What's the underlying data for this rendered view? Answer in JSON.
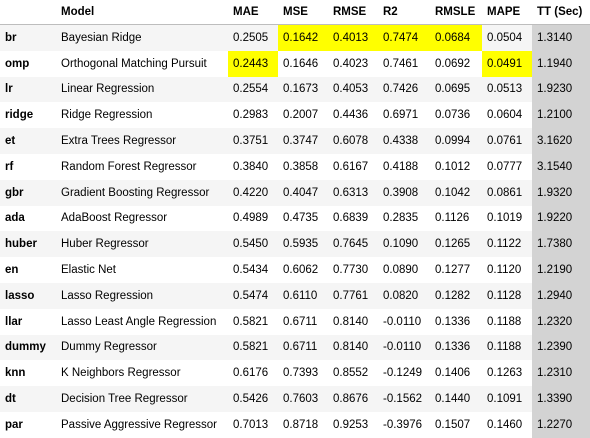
{
  "columns": [
    "",
    "Model",
    "MAE",
    "MSE",
    "RMSE",
    "R2",
    "RMSLE",
    "MAPE",
    "TT (Sec)"
  ],
  "highlight_color": "#ffff00",
  "tt_column_color": "#d3d3d3",
  "rows": [
    {
      "id": "br",
      "model": "Bayesian Ridge",
      "mae": "0.2505",
      "mse": "0.1642",
      "rmse": "0.4013",
      "r2": "0.7474",
      "rmsle": "0.0684",
      "mape": "0.0504",
      "tt": "1.3140",
      "highlight": [
        "mse",
        "rmse",
        "r2",
        "rmsle"
      ]
    },
    {
      "id": "omp",
      "model": "Orthogonal Matching Pursuit",
      "mae": "0.2443",
      "mse": "0.1646",
      "rmse": "0.4023",
      "r2": "0.7461",
      "rmsle": "0.0692",
      "mape": "0.0491",
      "tt": "1.1940",
      "highlight": [
        "mae",
        "mape"
      ]
    },
    {
      "id": "lr",
      "model": "Linear Regression",
      "mae": "0.2554",
      "mse": "0.1673",
      "rmse": "0.4053",
      "r2": "0.7426",
      "rmsle": "0.0695",
      "mape": "0.0513",
      "tt": "1.9230",
      "highlight": []
    },
    {
      "id": "ridge",
      "model": "Ridge Regression",
      "mae": "0.2983",
      "mse": "0.2007",
      "rmse": "0.4436",
      "r2": "0.6971",
      "rmsle": "0.0736",
      "mape": "0.0604",
      "tt": "1.2100",
      "highlight": []
    },
    {
      "id": "et",
      "model": "Extra Trees Regressor",
      "mae": "0.3751",
      "mse": "0.3747",
      "rmse": "0.6078",
      "r2": "0.4338",
      "rmsle": "0.0994",
      "mape": "0.0761",
      "tt": "3.1620",
      "highlight": []
    },
    {
      "id": "rf",
      "model": "Random Forest Regressor",
      "mae": "0.3840",
      "mse": "0.3858",
      "rmse": "0.6167",
      "r2": "0.4188",
      "rmsle": "0.1012",
      "mape": "0.0777",
      "tt": "3.1540",
      "highlight": []
    },
    {
      "id": "gbr",
      "model": "Gradient Boosting Regressor",
      "mae": "0.4220",
      "mse": "0.4047",
      "rmse": "0.6313",
      "r2": "0.3908",
      "rmsle": "0.1042",
      "mape": "0.0861",
      "tt": "1.9320",
      "highlight": []
    },
    {
      "id": "ada",
      "model": "AdaBoost Regressor",
      "mae": "0.4989",
      "mse": "0.4735",
      "rmse": "0.6839",
      "r2": "0.2835",
      "rmsle": "0.1126",
      "mape": "0.1019",
      "tt": "1.9220",
      "highlight": []
    },
    {
      "id": "huber",
      "model": "Huber Regressor",
      "mae": "0.5450",
      "mse": "0.5935",
      "rmse": "0.7645",
      "r2": "0.1090",
      "rmsle": "0.1265",
      "mape": "0.1122",
      "tt": "1.7380",
      "highlight": []
    },
    {
      "id": "en",
      "model": "Elastic Net",
      "mae": "0.5434",
      "mse": "0.6062",
      "rmse": "0.7730",
      "r2": "0.0890",
      "rmsle": "0.1277",
      "mape": "0.1120",
      "tt": "1.2190",
      "highlight": []
    },
    {
      "id": "lasso",
      "model": "Lasso Regression",
      "mae": "0.5474",
      "mse": "0.6110",
      "rmse": "0.7761",
      "r2": "0.0820",
      "rmsle": "0.1282",
      "mape": "0.1128",
      "tt": "1.2940",
      "highlight": []
    },
    {
      "id": "llar",
      "model": "Lasso Least Angle Regression",
      "mae": "0.5821",
      "mse": "0.6711",
      "rmse": "0.8140",
      "r2": "-0.0110",
      "rmsle": "0.1336",
      "mape": "0.1188",
      "tt": "1.2320",
      "highlight": []
    },
    {
      "id": "dummy",
      "model": "Dummy Regressor",
      "mae": "0.5821",
      "mse": "0.6711",
      "rmse": "0.8140",
      "r2": "-0.0110",
      "rmsle": "0.1336",
      "mape": "0.1188",
      "tt": "1.2390",
      "highlight": []
    },
    {
      "id": "knn",
      "model": "K Neighbors Regressor",
      "mae": "0.6176",
      "mse": "0.7393",
      "rmse": "0.8552",
      "r2": "-0.1249",
      "rmsle": "0.1406",
      "mape": "0.1263",
      "tt": "1.2310",
      "highlight": []
    },
    {
      "id": "dt",
      "model": "Decision Tree Regressor",
      "mae": "0.5426",
      "mse": "0.7603",
      "rmse": "0.8676",
      "r2": "-0.1562",
      "rmsle": "0.1440",
      "mape": "0.1091",
      "tt": "1.3390",
      "highlight": []
    },
    {
      "id": "par",
      "model": "Passive Aggressive Regressor",
      "mae": "0.7013",
      "mse": "0.8718",
      "rmse": "0.9253",
      "r2": "-0.3976",
      "rmsle": "0.1507",
      "mape": "0.1460",
      "tt": "1.2270",
      "highlight": []
    }
  ]
}
